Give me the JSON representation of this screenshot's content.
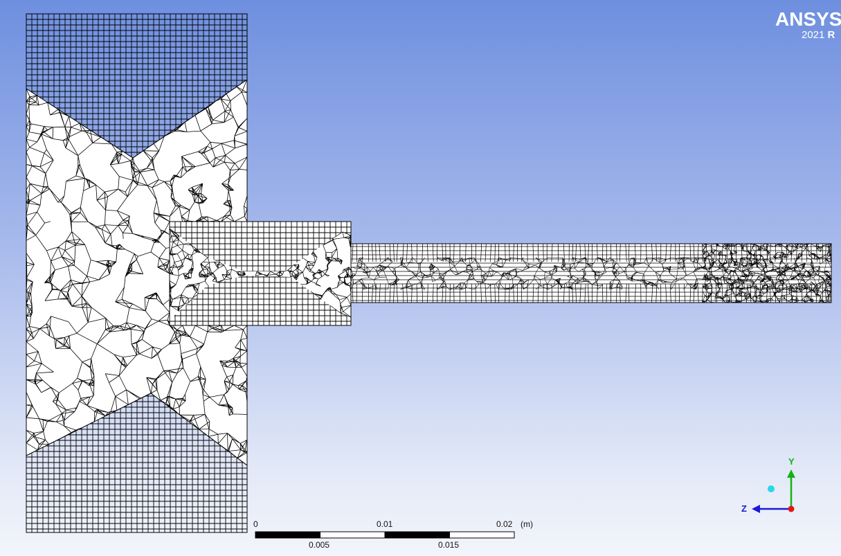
{
  "branding": {
    "logo_text": "ANSYS",
    "version_year": "2021",
    "version_suffix": "R"
  },
  "scale_bar": {
    "unit": "(m)",
    "top_labels": [
      "0",
      "0.01",
      "0.02"
    ],
    "bottom_labels": [
      "0.005",
      "0.015"
    ]
  },
  "triad": {
    "y_label": "Y",
    "z_label": "Z",
    "y_color": "#12b312",
    "z_color": "#1a1ad6",
    "x_color": "#e01818",
    "iso_color": "#27d8e8"
  },
  "colors": {
    "mesh_line": "#000000",
    "background_top": "#6e8fdf",
    "background_bottom": "#f3f5fb"
  }
}
